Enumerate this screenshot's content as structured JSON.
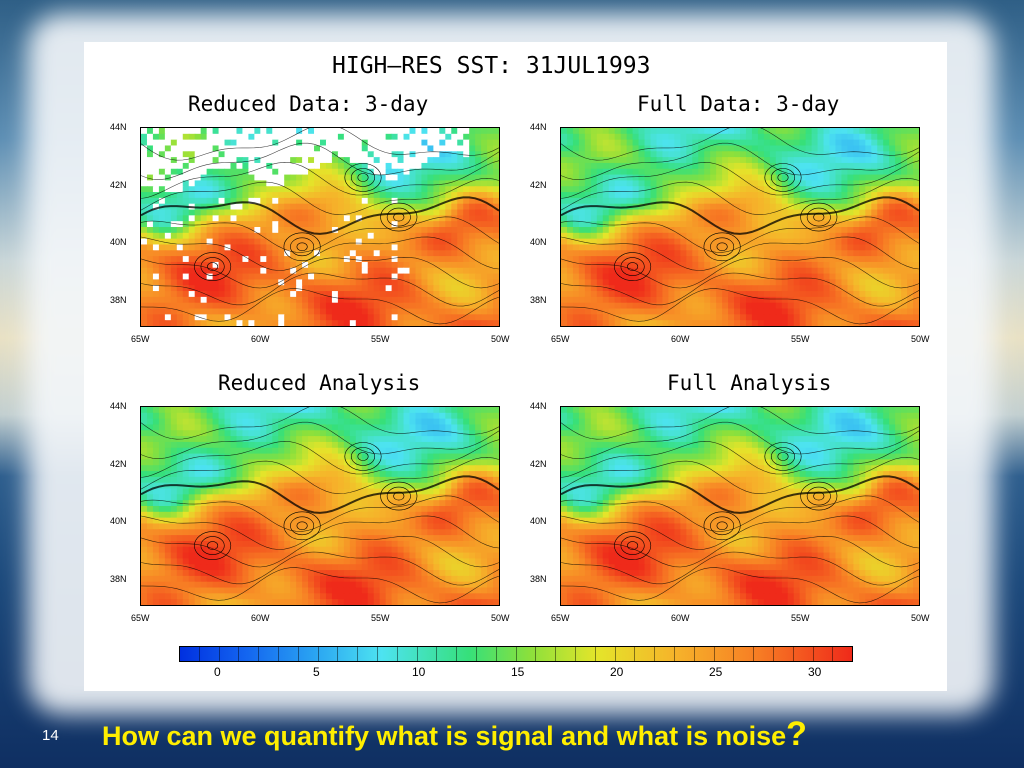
{
  "slide": {
    "main_title": "HIGH—RES SST: 31JUL1993",
    "question": "How can we quantify what is signal and what is noise",
    "question_mark": "?",
    "page_number": "14"
  },
  "maps": {
    "reduced_data": {
      "title": "Reduced Data: 3-day",
      "has_gaps": true
    },
    "full_data": {
      "title": "Full Data: 3-day",
      "has_gaps": false
    },
    "reduced_analysis": {
      "title": "Reduced Analysis",
      "has_gaps": false
    },
    "full_analysis": {
      "title": "Full Analysis",
      "has_gaps": false
    }
  },
  "axes": {
    "lat_labels": [
      "44N",
      "42N",
      "40N",
      "38N"
    ],
    "lon_labels": [
      "65W",
      "60W",
      "55W",
      "50W"
    ]
  },
  "colorbar": {
    "labels": [
      "0",
      "5",
      "10",
      "15",
      "20",
      "25",
      "30"
    ],
    "segments": 34
  },
  "colors": {
    "cold": "#0030e0",
    "cool": "#4de3f1",
    "mid": "#36e07a",
    "warm": "#e4e52a",
    "hot": "#ef2a1a",
    "question_text": "#ffee00"
  }
}
